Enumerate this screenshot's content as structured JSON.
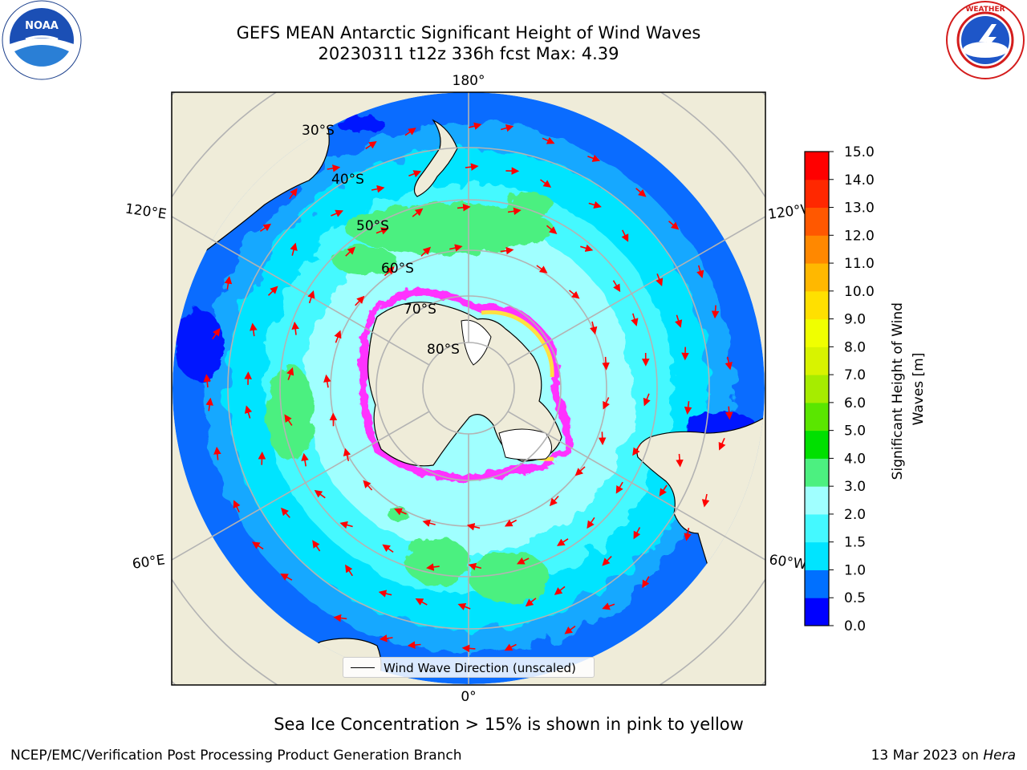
{
  "header": {
    "title_line1": "GEFS MEAN Antarctic Significant Height of Wind Waves",
    "title_line2": "20230311 t12z 336h fcst   Max: 4.39"
  },
  "logos": {
    "left": {
      "name": "NOAA",
      "ring_text": "NATIONAL OCEANIC AND ATMOSPHERIC ADMINISTRATION · U.S. DEPARTMENT OF COMMERCE"
    },
    "right": {
      "name": "NATIONAL WEATHER SERVICE"
    }
  },
  "map": {
    "projection": "south-polar-stereographic",
    "lon_labels": {
      "top": "180°",
      "bottom": "0°",
      "upper_left": "120°E",
      "upper_right": "120°W",
      "lower_left": "60°E",
      "lower_right": "60°W"
    },
    "lat_labels": [
      "30°S",
      "40°S",
      "50°S",
      "60°S",
      "70°S",
      "80°S"
    ],
    "legend_label": "Wind Wave Direction (unscaled)",
    "colors": {
      "land": "#efecd9",
      "ocean_low": "#0060ff",
      "ocean_mid": "#00e6ff",
      "ocean_high": "#a0ffff",
      "wave_green": "#4cf07a",
      "ice_pink": "#ff30ff",
      "ice_yellow": "#ffe040",
      "arrow": "#ff0000"
    }
  },
  "colorbar": {
    "label": "Significant Height of Wind Waves [m]",
    "ticks": [
      "0.0",
      "0.5",
      "1.0",
      "1.5",
      "2.0",
      "3.0",
      "4.0",
      "5.0",
      "6.0",
      "7.0",
      "8.0",
      "9.0",
      "10.0",
      "11.0",
      "12.0",
      "13.0",
      "14.0",
      "15.0"
    ],
    "colors": [
      "#0000ff",
      "#0070ff",
      "#00e4ff",
      "#44f9ff",
      "#a0ffff",
      "#4cf080",
      "#00e000",
      "#5ae600",
      "#a6ec00",
      "#d8f300",
      "#f0ff00",
      "#ffe000",
      "#ffb800",
      "#ff8800",
      "#ff5800",
      "#ff2800",
      "#ff0000"
    ]
  },
  "footer": {
    "note": "Sea Ice Concentration > 15% is shown in pink to yellow",
    "credit": "NCEP/EMC/Verification Post Processing Product Generation Branch",
    "date": "13 Mar 2023 on",
    "host": "Hera"
  }
}
